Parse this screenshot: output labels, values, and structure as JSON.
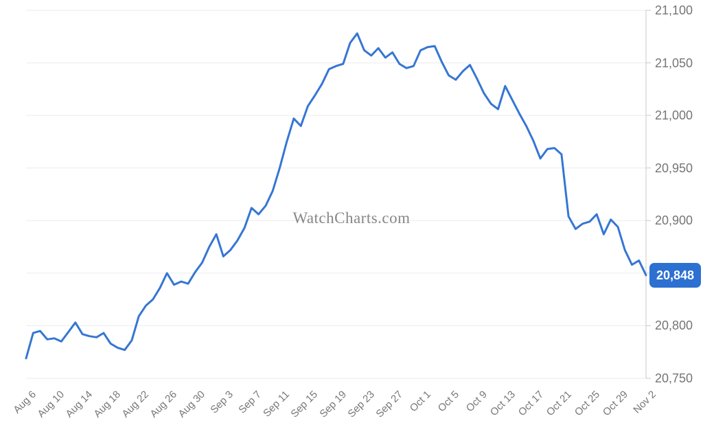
{
  "watermark": "WatchCharts.com",
  "badge": {
    "value": "20,848"
  },
  "colors": {
    "line": "#3576d3",
    "badge": "#2c70d2",
    "badge_text": "#ffffff",
    "grid": "#ebebeb",
    "axis": "#c9c9c9",
    "y_label": "#757575",
    "x_label": "#777777",
    "watermark": "#878787",
    "background": "#ffffff"
  },
  "chart_data": {
    "type": "line",
    "title": "",
    "watermark": "WatchCharts.com",
    "grid": true,
    "legend": "none",
    "ylim": [
      20750,
      21100
    ],
    "last_value": 20848,
    "last_value_label": "20,848",
    "y_ticks": [
      {
        "value": 21100,
        "label": "21,100"
      },
      {
        "value": 21050,
        "label": "21,050"
      },
      {
        "value": 21000,
        "label": "21,000"
      },
      {
        "value": 20950,
        "label": "20,950"
      },
      {
        "value": 20900,
        "label": "20,900"
      },
      {
        "value": 20850,
        "label": ""
      },
      {
        "value": 20800,
        "label": "20,800"
      },
      {
        "value": 20750,
        "label": "20,750"
      }
    ],
    "x_ticks": [
      {
        "index": 0,
        "label": "Aug 6"
      },
      {
        "index": 4,
        "label": "Aug 10"
      },
      {
        "index": 8,
        "label": "Aug 14"
      },
      {
        "index": 12,
        "label": "Aug 18"
      },
      {
        "index": 16,
        "label": "Aug 22"
      },
      {
        "index": 20,
        "label": "Aug 26"
      },
      {
        "index": 24,
        "label": "Aug 30"
      },
      {
        "index": 28,
        "label": "Sep 3"
      },
      {
        "index": 32,
        "label": "Sep 7"
      },
      {
        "index": 36,
        "label": "Sep 11"
      },
      {
        "index": 40,
        "label": "Sep 15"
      },
      {
        "index": 44,
        "label": "Sep 19"
      },
      {
        "index": 48,
        "label": "Sep 23"
      },
      {
        "index": 52,
        "label": "Sep 27"
      },
      {
        "index": 56,
        "label": "Oct 1"
      },
      {
        "index": 60,
        "label": "Oct 5"
      },
      {
        "index": 64,
        "label": "Oct 9"
      },
      {
        "index": 68,
        "label": "Oct 13"
      },
      {
        "index": 72,
        "label": "Oct 17"
      },
      {
        "index": 76,
        "label": "Oct 21"
      },
      {
        "index": 80,
        "label": "Oct 25"
      },
      {
        "index": 84,
        "label": "Oct 29"
      },
      {
        "index": 88,
        "label": "Nov 2"
      }
    ],
    "x": [
      "Aug 6",
      "Aug 7",
      "Aug 8",
      "Aug 9",
      "Aug 10",
      "Aug 11",
      "Aug 12",
      "Aug 13",
      "Aug 14",
      "Aug 15",
      "Aug 16",
      "Aug 17",
      "Aug 18",
      "Aug 19",
      "Aug 20",
      "Aug 21",
      "Aug 22",
      "Aug 23",
      "Aug 24",
      "Aug 25",
      "Aug 26",
      "Aug 27",
      "Aug 28",
      "Aug 29",
      "Aug 30",
      "Aug 31",
      "Sep 1",
      "Sep 2",
      "Sep 3",
      "Sep 4",
      "Sep 5",
      "Sep 6",
      "Sep 7",
      "Sep 8",
      "Sep 9",
      "Sep 10",
      "Sep 11",
      "Sep 12",
      "Sep 13",
      "Sep 14",
      "Sep 15",
      "Sep 16",
      "Sep 17",
      "Sep 18",
      "Sep 19",
      "Sep 20",
      "Sep 21",
      "Sep 22",
      "Sep 23",
      "Sep 24",
      "Sep 25",
      "Sep 26",
      "Sep 27",
      "Sep 28",
      "Sep 29",
      "Sep 30",
      "Oct 1",
      "Oct 2",
      "Oct 3",
      "Oct 4",
      "Oct 5",
      "Oct 6",
      "Oct 7",
      "Oct 8",
      "Oct 9",
      "Oct 10",
      "Oct 11",
      "Oct 12",
      "Oct 13",
      "Oct 14",
      "Oct 15",
      "Oct 16",
      "Oct 17",
      "Oct 18",
      "Oct 19",
      "Oct 20",
      "Oct 21",
      "Oct 22",
      "Oct 23",
      "Oct 24",
      "Oct 25",
      "Oct 26",
      "Oct 27",
      "Oct 28",
      "Oct 29",
      "Oct 30",
      "Oct 31",
      "Nov 1",
      "Nov 2"
    ],
    "series": [
      {
        "name": "Price",
        "values": [
          20769,
          20793,
          20795,
          20787,
          20788,
          20785,
          20794,
          20803,
          20792,
          20790,
          20789,
          20793,
          20783,
          20779,
          20777,
          20786,
          20809,
          20819,
          20825,
          20836,
          20850,
          20839,
          20842,
          20840,
          20851,
          20860,
          20875,
          20887,
          20866,
          20872,
          20881,
          20893,
          20912,
          20906,
          20914,
          20928,
          20950,
          20975,
          20997,
          20990,
          21009,
          21019,
          21030,
          21044,
          21047,
          21049,
          21069,
          21078,
          21062,
          21057,
          21064,
          21055,
          21060,
          21049,
          21045,
          21047,
          21062,
          21065,
          21066,
          21051,
          21038,
          21034,
          21042,
          21048,
          21035,
          21021,
          21011,
          21006,
          21028,
          21015,
          21002,
          20990,
          20976,
          20959,
          20968,
          20969,
          20963,
          20904,
          20892,
          20897,
          20899,
          20906,
          20887,
          20901,
          20894,
          20872,
          20858,
          20862,
          20848
        ]
      }
    ]
  }
}
